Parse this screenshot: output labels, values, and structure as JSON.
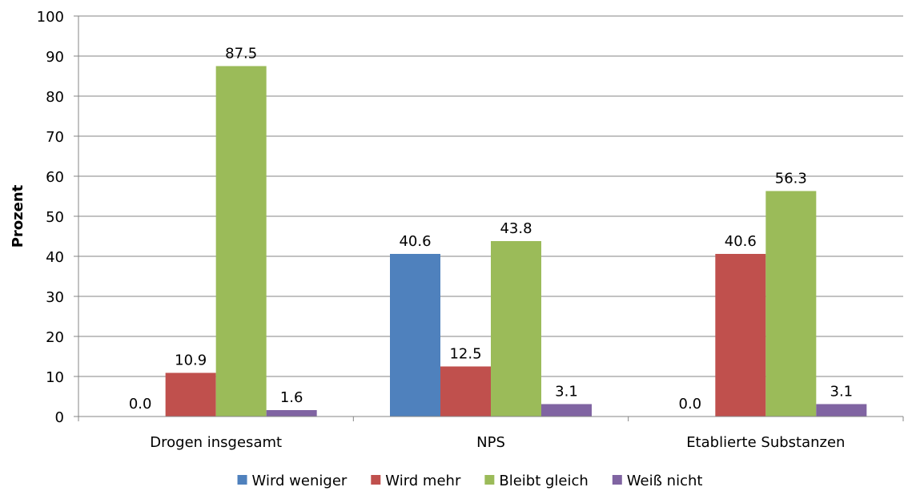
{
  "chart_data": {
    "type": "bar",
    "title": "",
    "xlabel": "",
    "ylabel": "Prozent",
    "ylim": [
      0,
      100
    ],
    "yticks": [
      0,
      10,
      20,
      30,
      40,
      50,
      60,
      70,
      80,
      90,
      100
    ],
    "grid": true,
    "legend_position": "bottom",
    "categories": [
      "Drogen insgesamt",
      "NPS",
      "Etablierte Substanzen"
    ],
    "series": [
      {
        "name": "Wird weniger",
        "color": "#4F81BD",
        "values": [
          0.0,
          40.6,
          0.0
        ],
        "labels": [
          "0.0",
          "40.6",
          "0.0"
        ]
      },
      {
        "name": "Wird mehr",
        "color": "#C0504D",
        "values": [
          10.9,
          12.5,
          40.6
        ],
        "labels": [
          "10.9",
          "12.5",
          "40.6"
        ]
      },
      {
        "name": "Bleibt gleich",
        "color": "#9BBB59",
        "values": [
          87.5,
          43.8,
          56.3
        ],
        "labels": [
          "87.5",
          "43.8",
          "56.3"
        ]
      },
      {
        "name": "Weiß nicht",
        "color": "#8064A2",
        "values": [
          1.6,
          3.1,
          3.1
        ],
        "labels": [
          "1.6",
          "3.1",
          "3.1"
        ]
      }
    ]
  }
}
